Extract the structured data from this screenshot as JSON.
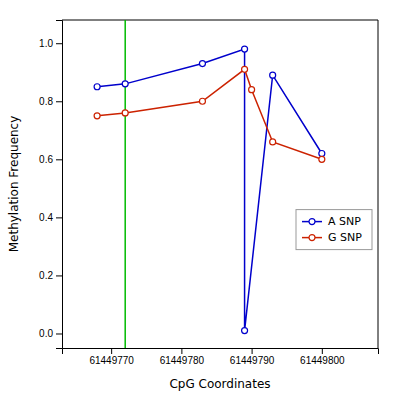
{
  "chart_data": {
    "type": "line",
    "xlabel": "CpG Coordinates",
    "ylabel": "Methylation Frequency",
    "series": [
      {
        "name": "A SNP",
        "color": "#0000cc",
        "marker": "circle",
        "x": [
          61449768,
          61449772,
          61449783,
          61449789,
          61449789,
          61449793,
          61449800
        ],
        "values": [
          0.85,
          0.86,
          0.93,
          0.98,
          0.01,
          0.89,
          0.62
        ]
      },
      {
        "name": "G SNP",
        "color": "#cc2200",
        "marker": "circle",
        "x": [
          61449768,
          61449772,
          61449783,
          61449789,
          61449790,
          61449793,
          61449800
        ],
        "values": [
          0.75,
          0.76,
          0.8,
          0.91,
          0.84,
          0.66,
          0.6
        ]
      }
    ],
    "vlines": [
      {
        "x": 61449772,
        "color": "#00bb00"
      }
    ],
    "xlim": [
      61449763,
      61449808
    ],
    "xticks": [
      61449770,
      61449780,
      61449790,
      61449800
    ],
    "ylim": [
      -0.05,
      1.08
    ],
    "yticks": [
      {
        "value": 0.0,
        "label": "0.0"
      },
      0.2,
      0.4,
      0.6,
      0.8,
      {
        "value": 1.0,
        "label": "1.0"
      }
    ],
    "grid": false,
    "legend": "lower right"
  }
}
